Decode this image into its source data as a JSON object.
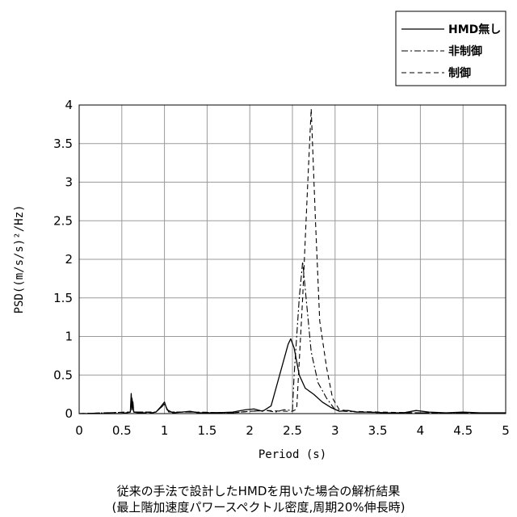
{
  "chart_data": {
    "type": "line",
    "title": "",
    "xlabel": "Period (s)",
    "ylabel": "PSD((m/s/s)²/Hz)",
    "xlim": [
      0,
      5
    ],
    "ylim": [
      0,
      4
    ],
    "x_ticks": [
      "0",
      "0.5",
      "1",
      "1.5",
      "2",
      "2.5",
      "3",
      "3.5",
      "4",
      "4.5",
      "5"
    ],
    "y_ticks": [
      "0",
      "0.5",
      "1",
      "1.5",
      "2",
      "2.5",
      "3",
      "3.5",
      "4"
    ],
    "grid": true,
    "legend_position": "top-right",
    "series": [
      {
        "name": "HMD無し",
        "style": "solid",
        "points": [
          [
            0,
            0
          ],
          [
            0.5,
            0
          ],
          [
            0.55,
            0.01
          ],
          [
            0.6,
            0.02
          ],
          [
            0.61,
            0.26
          ],
          [
            0.62,
            0.05
          ],
          [
            0.63,
            0.15
          ],
          [
            0.64,
            0.02
          ],
          [
            0.7,
            0.01
          ],
          [
            0.78,
            0.01
          ],
          [
            0.8,
            0.02
          ],
          [
            0.85,
            0.01
          ],
          [
            0.9,
            0.02
          ],
          [
            0.95,
            0.08
          ],
          [
            1.0,
            0.15
          ],
          [
            1.03,
            0.05
          ],
          [
            1.1,
            0.01
          ],
          [
            1.2,
            0.02
          ],
          [
            1.3,
            0.03
          ],
          [
            1.4,
            0.01
          ],
          [
            1.6,
            0.01
          ],
          [
            1.8,
            0.02
          ],
          [
            1.95,
            0.05
          ],
          [
            2.05,
            0.06
          ],
          [
            2.15,
            0.03
          ],
          [
            2.25,
            0.1
          ],
          [
            2.35,
            0.5
          ],
          [
            2.45,
            0.9
          ],
          [
            2.48,
            0.97
          ],
          [
            2.52,
            0.85
          ],
          [
            2.58,
            0.5
          ],
          [
            2.65,
            0.33
          ],
          [
            2.75,
            0.25
          ],
          [
            2.85,
            0.15
          ],
          [
            2.95,
            0.08
          ],
          [
            3.05,
            0.03
          ],
          [
            3.15,
            0.04
          ],
          [
            3.25,
            0.02
          ],
          [
            3.4,
            0.02
          ],
          [
            3.6,
            0.01
          ],
          [
            3.8,
            0.01
          ],
          [
            3.95,
            0.04
          ],
          [
            4.1,
            0.02
          ],
          [
            4.3,
            0.01
          ],
          [
            4.5,
            0.02
          ],
          [
            4.7,
            0.01
          ],
          [
            5.0,
            0.01
          ]
        ]
      },
      {
        "name": "非制御",
        "style": "dashdot",
        "points": [
          [
            0,
            0
          ],
          [
            0.6,
            0.02
          ],
          [
            0.62,
            0.2
          ],
          [
            0.64,
            0.02
          ],
          [
            0.9,
            0.02
          ],
          [
            0.98,
            0.1
          ],
          [
            1.0,
            0.12
          ],
          [
            1.05,
            0.02
          ],
          [
            1.3,
            0.02
          ],
          [
            1.8,
            0.01
          ],
          [
            2.0,
            0.03
          ],
          [
            2.2,
            0.04
          ],
          [
            2.3,
            0.02
          ],
          [
            2.4,
            0.05
          ],
          [
            2.5,
            0.04
          ],
          [
            2.52,
            0.5
          ],
          [
            2.58,
            1.5
          ],
          [
            2.62,
            1.97
          ],
          [
            2.66,
            1.5
          ],
          [
            2.72,
            0.8
          ],
          [
            2.8,
            0.4
          ],
          [
            2.9,
            0.2
          ],
          [
            3.0,
            0.05
          ],
          [
            3.1,
            0.03
          ],
          [
            3.3,
            0.02
          ],
          [
            3.6,
            0.01
          ],
          [
            4.0,
            0.01
          ],
          [
            5.0,
            0.01
          ]
        ]
      },
      {
        "name": "制御",
        "style": "dashed",
        "points": [
          [
            0,
            0
          ],
          [
            0.6,
            0.02
          ],
          [
            0.62,
            0.18
          ],
          [
            0.64,
            0.02
          ],
          [
            0.9,
            0.02
          ],
          [
            0.98,
            0.1
          ],
          [
            1.0,
            0.13
          ],
          [
            1.05,
            0.02
          ],
          [
            1.3,
            0.02
          ],
          [
            1.8,
            0.01
          ],
          [
            2.0,
            0.03
          ],
          [
            2.2,
            0.04
          ],
          [
            2.4,
            0.03
          ],
          [
            2.5,
            0.03
          ],
          [
            2.55,
            0.06
          ],
          [
            2.62,
            1.5
          ],
          [
            2.68,
            3.0
          ],
          [
            2.72,
            3.95
          ],
          [
            2.77,
            2.5
          ],
          [
            2.82,
            1.2
          ],
          [
            2.9,
            0.6
          ],
          [
            2.97,
            0.2
          ],
          [
            3.05,
            0.05
          ],
          [
            3.2,
            0.03
          ],
          [
            3.5,
            0.02
          ],
          [
            4.0,
            0.01
          ],
          [
            5.0,
            0.01
          ]
        ]
      }
    ],
    "caption": [
      "従来の手法で設計したHMDを用いた場合の解析結果",
      "(最上階加速度パワースペクトル密度,周期20%伸長時)"
    ]
  }
}
